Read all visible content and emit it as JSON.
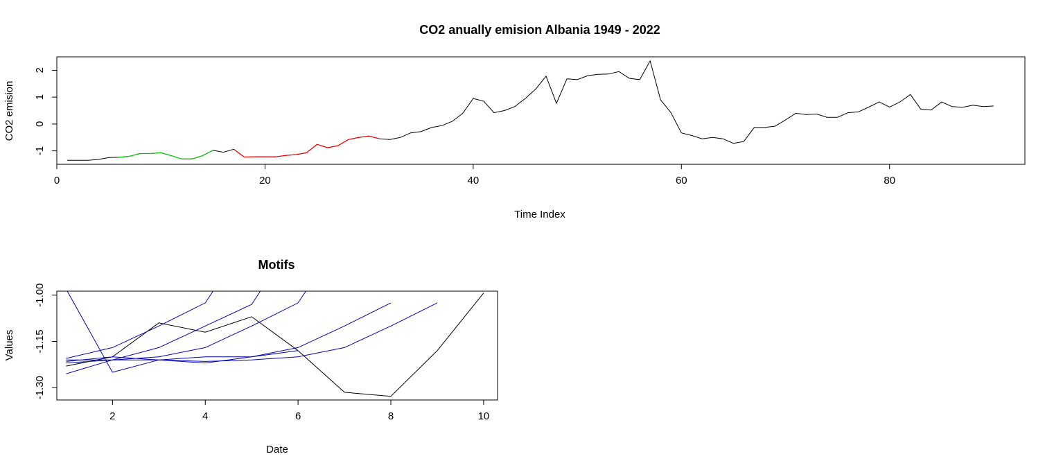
{
  "chart_data": [
    {
      "type": "line",
      "title": "CO2 anually emision Albania 1949 - 2022",
      "xlabel": "Time Index",
      "ylabel": "CO2 emision",
      "xlim": [
        0,
        93
      ],
      "ylim": [
        -1.5,
        2.5
      ],
      "xticks": [
        0,
        20,
        40,
        60,
        80
      ],
      "yticks": [
        -1,
        0,
        1,
        2
      ],
      "grid": false,
      "series": [
        {
          "color": "#000000",
          "x": [
            1,
            2,
            3,
            4,
            5,
            6,
            7,
            8,
            9,
            10,
            11,
            12,
            13,
            14,
            15,
            16,
            17,
            18,
            19,
            20,
            21,
            22,
            23,
            24,
            25,
            26,
            27,
            28,
            29,
            30,
            31,
            32,
            33,
            34,
            35,
            36,
            37,
            38,
            39,
            40,
            41,
            42,
            43,
            44,
            45,
            46,
            47,
            48,
            49,
            50,
            51,
            52,
            53,
            54,
            55,
            56,
            57,
            58,
            59,
            60,
            61,
            62,
            63,
            64,
            65,
            66,
            67,
            68,
            69,
            70,
            71,
            72,
            73,
            74,
            75,
            76,
            77,
            78,
            79,
            80,
            81,
            82,
            83,
            84,
            85,
            86,
            87,
            88,
            89,
            90
          ],
          "values": [
            -1.35,
            -1.35,
            -1.35,
            -1.32,
            -1.25,
            -1.24,
            -1.2,
            -1.1,
            -1.1,
            -1.07,
            -1.18,
            -1.3,
            -1.3,
            -1.18,
            -0.98,
            -1.05,
            -0.94,
            -1.23,
            -1.22,
            -1.22,
            -1.22,
            -1.17,
            -1.14,
            -1.07,
            -0.76,
            -0.88,
            -0.81,
            -0.58,
            -0.5,
            -0.45,
            -0.55,
            -0.58,
            -0.5,
            -0.33,
            -0.28,
            -0.13,
            -0.06,
            0.1,
            0.4,
            0.95,
            0.85,
            0.42,
            0.5,
            0.65,
            0.95,
            1.3,
            1.78,
            0.77,
            1.68,
            1.65,
            1.8,
            1.85,
            1.86,
            1.95,
            1.7,
            1.65,
            2.35,
            0.9,
            0.42,
            -0.33,
            -0.43,
            -0.55,
            -0.5,
            -0.55,
            -0.72,
            -0.65,
            -0.13,
            -0.13,
            -0.08,
            0.15,
            0.4,
            0.35,
            0.37,
            0.25,
            0.25,
            0.42,
            0.45,
            0.63,
            0.82,
            0.63,
            0.82,
            1.1,
            0.55,
            0.52,
            0.82,
            0.65,
            0.62,
            0.7,
            0.65,
            0.67
          ]
        }
      ],
      "highlights": [
        {
          "color": "#00cc00",
          "x_from": 6,
          "x_to": 15
        },
        {
          "color": "#ff0000",
          "x_from": 17,
          "x_to": 31
        }
      ]
    },
    {
      "type": "line",
      "title": "Motifs",
      "xlabel": "Date",
      "ylabel": "Values",
      "xlim": [
        0.8,
        10.3
      ],
      "ylim": [
        -1.34,
        -0.987
      ],
      "xticks": [
        2,
        4,
        6,
        8,
        10
      ],
      "yticks": [
        -1.3,
        -1.15,
        -1.0
      ],
      "ytick_labels": [
        "-1.30",
        "-1.15",
        "-1.00"
      ],
      "grid": false,
      "series": [
        {
          "color": "#000000",
          "x": [
            1,
            2,
            3,
            4,
            5,
            6,
            7,
            8,
            9,
            10
          ],
          "values": [
            -1.23,
            -1.2,
            -1.09,
            -1.12,
            -1.07,
            -1.18,
            -1.315,
            -1.328,
            -1.18,
            -0.993
          ]
        },
        {
          "color": "#0000bb",
          "x": [
            1,
            2,
            3,
            4,
            5,
            6
          ],
          "values": [
            -0.98,
            -1.25,
            -1.21,
            -1.2,
            -1.2,
            -1.18
          ]
        },
        {
          "color": "#0000bb",
          "x": [
            1,
            2,
            3,
            4,
            5
          ],
          "values": [
            -1.205,
            -1.17,
            -1.1,
            -1.025,
            -0.8
          ]
        },
        {
          "color": "#0000bb",
          "x": [
            1,
            2,
            3,
            4,
            5,
            6
          ],
          "values": [
            -1.22,
            -1.21,
            -1.17,
            -1.1,
            -1.03,
            -0.8
          ]
        },
        {
          "color": "#0000bb",
          "x": [
            1,
            2,
            3,
            4,
            5,
            6,
            7
          ],
          "values": [
            -1.255,
            -1.21,
            -1.2,
            -1.17,
            -1.1,
            -1.025,
            -0.8
          ]
        },
        {
          "color": "#0000bb",
          "x": [
            1,
            2,
            3,
            4,
            5,
            6,
            7,
            8
          ],
          "values": [
            -1.215,
            -1.2,
            -1.21,
            -1.22,
            -1.2,
            -1.17,
            -1.1,
            -1.025
          ]
        },
        {
          "color": "#0000bb",
          "x": [
            1,
            2,
            3,
            4,
            5,
            6,
            7,
            8,
            9
          ],
          "values": [
            -1.21,
            -1.21,
            -1.21,
            -1.215,
            -1.21,
            -1.2,
            -1.17,
            -1.1,
            -1.025
          ]
        }
      ]
    }
  ]
}
